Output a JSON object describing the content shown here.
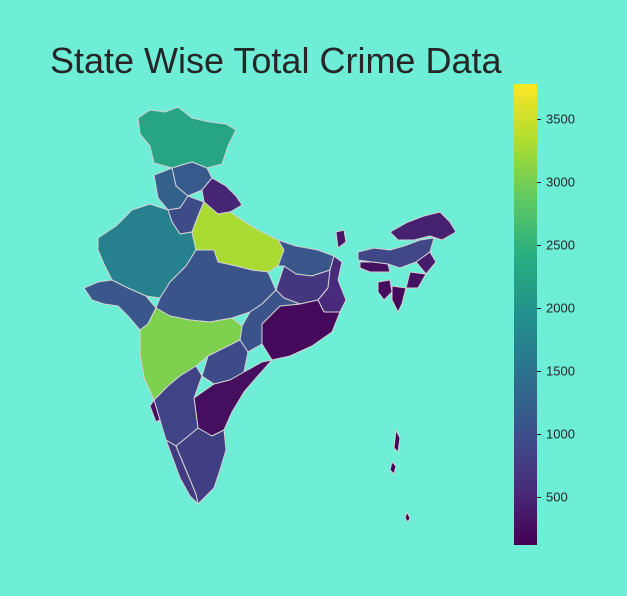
{
  "title": "State Wise Total Crime Data",
  "colorbar": {
    "colormap": "viridis",
    "min": 120,
    "max": 3780,
    "ticks": [
      "500",
      "1000",
      "1500",
      "2000",
      "2500",
      "3000",
      "3500"
    ]
  },
  "regions": [
    {
      "id": "jammu-kashmir",
      "value": 2250
    },
    {
      "id": "himachal-pradesh",
      "value": 1150
    },
    {
      "id": "punjab",
      "value": 1250
    },
    {
      "id": "uttarakhand",
      "value": 500
    },
    {
      "id": "haryana",
      "value": 950
    },
    {
      "id": "rajasthan",
      "value": 1700
    },
    {
      "id": "uttar-pradesh",
      "value": 3300
    },
    {
      "id": "gujarat",
      "value": 1100
    },
    {
      "id": "madhya-pradesh",
      "value": 1050
    },
    {
      "id": "bihar",
      "value": 1100
    },
    {
      "id": "jharkhand",
      "value": 700
    },
    {
      "id": "west-bengal",
      "value": 550
    },
    {
      "id": "odisha",
      "value": 200
    },
    {
      "id": "chhattisgarh",
      "value": 1050
    },
    {
      "id": "maharashtra",
      "value": 3050
    },
    {
      "id": "telangana",
      "value": 950
    },
    {
      "id": "andhra-pradesh",
      "value": 250
    },
    {
      "id": "karnataka",
      "value": 850
    },
    {
      "id": "goa",
      "value": 300
    },
    {
      "id": "kerala",
      "value": 750
    },
    {
      "id": "tamil-nadu",
      "value": 800
    },
    {
      "id": "sikkim",
      "value": 350
    },
    {
      "id": "arunachal-pradesh",
      "value": 450
    },
    {
      "id": "assam",
      "value": 900
    },
    {
      "id": "nagaland",
      "value": 400
    },
    {
      "id": "meghalaya",
      "value": 250
    },
    {
      "id": "manipur",
      "value": 300
    },
    {
      "id": "mizoram",
      "value": 200
    },
    {
      "id": "tripura",
      "value": 250
    },
    {
      "id": "andaman-nicobar",
      "value": 150
    }
  ]
}
